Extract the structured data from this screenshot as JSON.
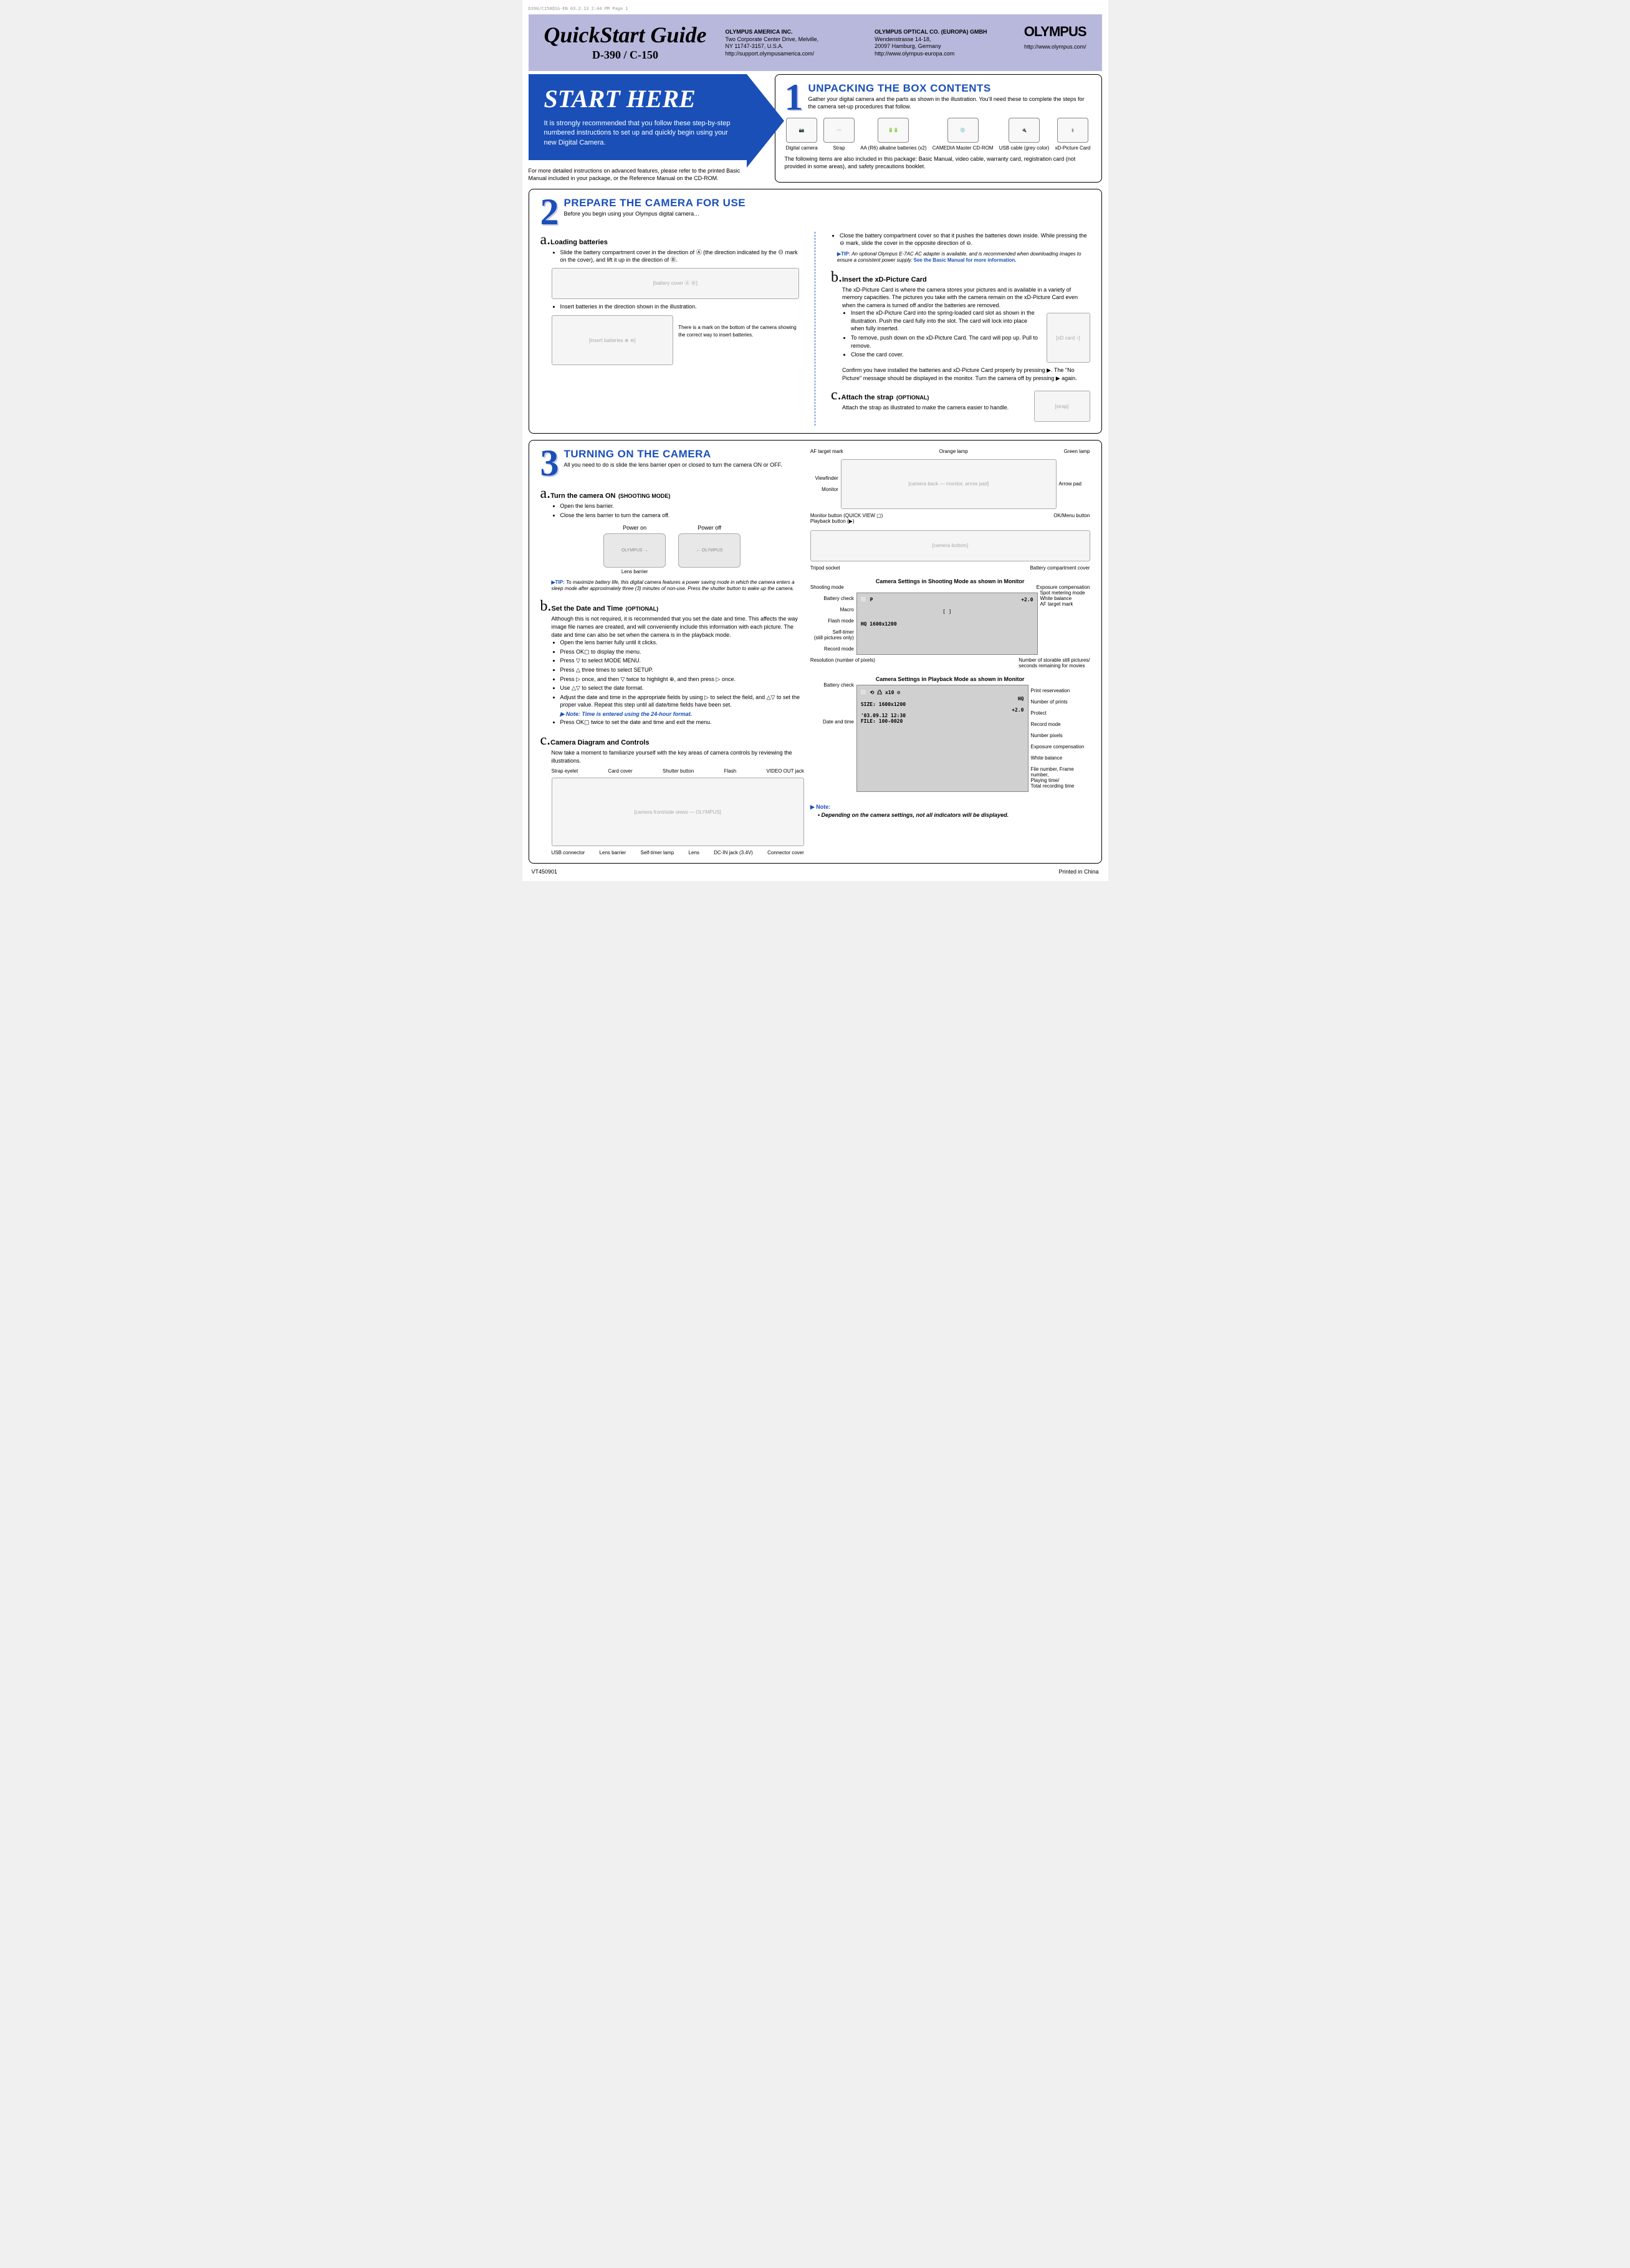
{
  "print_mark": "D390/C150QSG-EN  03.2.13 2:44 PM  Page 1",
  "header": {
    "title": "QuickStart Guide",
    "model": "D-390 / C-150",
    "addr1_name": "OLYMPUS AMERICA INC.",
    "addr1_lines": "Two Corporate Center Drive, Melville,\nNY 11747-3157, U.S.A.\nhttp://support.olympusamerica.com/",
    "addr2_name": "OLYMPUS OPTICAL CO. (EUROPA) GMBH",
    "addr2_lines": "Wendenstrasse 14-18,\n20097 Hamburg, Germany\nhttp://www.olympus-europa.com",
    "brand": "OLYMPUS",
    "brand_url": "http://www.olympus.com/"
  },
  "start": {
    "title": "START HERE",
    "text": "It is strongly recommended that you follow these step-by-step numbered instructions to set up and quickly begin using your new Digital Camera.",
    "note": "For more detailed instructions on advanced features, please refer to the printed Basic Manual included in your package, or the Reference Manual on the CD-ROM."
  },
  "sec1": {
    "num": "1",
    "title": "UNPACKING THE BOX CONTENTS",
    "intro": "Gather your digital camera and the parts as shown in the illustration. You'll need these to complete the steps for the camera set-up procedures that follow.",
    "items": [
      "Digital camera",
      "Strap",
      "AA (R6) alkaline batteries (x2)",
      "CAMEDIA Master CD-ROM",
      "USB cable (grey color)",
      "xD-Picture Card"
    ],
    "foot": "The following items are also included in this package: Basic Manual, video cable, warranty card, registration card (not provided in some areas), and safety precautions booklet."
  },
  "sec2": {
    "num": "2",
    "title": "PREPARE THE CAMERA FOR USE",
    "intro": "Before you begin using your Olympus digital camera…",
    "a_head": "Loading batteries",
    "a_li1": "Slide the battery compartment cover in the direction of Ⓐ (the direction indicated by the ⊖ mark on the cover), and lift it up in the direction of Ⓑ.",
    "a_li2": "Insert batteries in the direction shown in the illustration.",
    "a_caption": "There is a mark on the bottom of the camera showing the correct way to insert batteries.",
    "close_li": "Close the battery compartment cover so that it pushes the batteries down inside. While pressing the ⊖ mark, slide the cover in the opposite direction of ⊖.",
    "tip": "An optional Olympus E-7AC AC adapter is available, and is recommended when downloading images to ensure a consistent power supply.",
    "tip_bold": "See the Basic Manual for more information.",
    "b_head": "Insert the xD-Picture Card",
    "b_intro": "The xD-Picture Card is where the camera stores your pictures and is available in a variety of memory capacities. The pictures you take with the camera remain on the xD-Picture Card even when the camera is turned off and/or the batteries are removed.",
    "b_li1": "Insert the xD-Picture Card into the spring-loaded card slot as shown in the illustration. Push the card fully into the slot. The card will lock into place when fully inserted.",
    "b_li2": "To remove, push down on the xD-Picture Card. The card will pop up. Pull to remove.",
    "b_li3": "Close the card cover.",
    "b_confirm": "Confirm you have installed the batteries and xD-Picture Card properly by pressing ▶. The \"No Picture\" message should be displayed in the monitor. Turn the camera off by pressing ▶ again.",
    "c_head": "Attach the strap",
    "c_opt": "(OPTIONAL)",
    "c_text": "Attach the strap as illustrated to make the camera easier to handle."
  },
  "sec3": {
    "num": "3",
    "title": "TURNING ON THE CAMERA",
    "intro": "All you need to do is slide the lens barrier open or closed to turn the camera ON or OFF.",
    "a_head": "Turn the camera ON",
    "a_opt": "(SHOOTING MODE)",
    "a_li1": "Open the lens barrier.",
    "a_li2": "Close the lens barrier to turn the camera off.",
    "power_on": "Power on",
    "power_off": "Power off",
    "lens_barrier": "Lens barrier",
    "tip_a": "To maximize battery life, this digital camera features a power saving mode in which the camera enters a sleep mode after approximately three (3) minutes of non-use.  Press the shutter button to wake up the camera.",
    "b_head": "Set the Date and Time",
    "b_opt": "(OPTIONAL)",
    "b_intro": "Although this is not required, it is recommended that you set the date and time. This affects the way image file names are created, and will conveniently include this information with each picture. The date and time can also be set when the camera is in the playback mode.",
    "b_steps": [
      "Open the lens barrier fully until it clicks.",
      "Press OK▢ to display the menu.",
      "Press ▽ to select MODE MENU.",
      "Press △ three times to select SETUP.",
      "Press ▷ once, and then ▽ twice to highlight ⊕, and then press ▷ once.",
      "Use △▽ to select the date format.",
      "Adjust the date and time in the appropriate fields by using ▷ to select the field, and △▽ to set the proper value. Repeat this step until all date/time fields have been set."
    ],
    "b_note": "Note: Time is entered using the 24-hour format.",
    "b_last": "Press OK▢ twice to set the date and time and exit the menu.",
    "c_head": "Camera Diagram and Controls",
    "c_intro": "Now take a moment to familiarize yourself with the key areas of camera controls by reviewing the illustrations.",
    "front_labels": [
      "Strap eyelet",
      "Card cover",
      "Shutter button",
      "Flash",
      "VIDEO OUT jack"
    ],
    "bottom_labels": [
      "USB connector",
      "Lens barrier",
      "Self-timer lamp",
      "Lens",
      "DC-IN jack (3.4V)",
      "Connector cover"
    ],
    "back_labels": {
      "af": "AF target mark",
      "orange": "Orange lamp",
      "green": "Green lamp",
      "vf": "Viewfinder",
      "arrow": "Arrow pad",
      "mon": "Monitor",
      "mbtn": "Monitor button (QUICK VIEW ▢)\nPlayback button (▶)",
      "ok": "OK/Menu button",
      "tripod": "Tripod socket",
      "batt": "Battery compartment cover"
    },
    "shoot_title": "Camera Settings in Shooting Mode as shown in Monitor",
    "shoot_labels_l": [
      "Battery check",
      "Macro",
      "Flash mode",
      "Self-timer\n(still pictures only)",
      "Record mode"
    ],
    "shoot_labels_t": [
      "Shooting mode",
      "Exposure compensation"
    ],
    "shoot_labels_r": [
      "Spot metering mode",
      "White balance",
      "AF target mark"
    ],
    "shoot_labels_b": [
      "Resolution (number of pixels)",
      "Number of storable still pictures/\nseconds remaining for movies"
    ],
    "shoot_screen": [
      "⬜ P",
      "+2.0",
      "HQ  1600x1200"
    ],
    "play_title": "Camera Settings in Playback Mode as shown in Monitor",
    "play_labels_l": [
      "Battery check",
      "Date and time"
    ],
    "play_labels_r": [
      "Print reserveation",
      "Number of prints",
      "Protect",
      "Record mode",
      "Number pixels",
      "Exposure compensation",
      "White balance",
      "File number, Frame number,\nPlaying time/\nTotal recording time"
    ],
    "play_screen": [
      "⬜  ⟲ 凸 x10  ⊘",
      "HQ",
      "SIZE: 1600x1200",
      "+2.0",
      "'03.09.12 12:30",
      "FILE: 100-0020"
    ],
    "note_label": "Note:",
    "note_text": "Depending on the camera settings, not all indicators will be displayed."
  },
  "footer": {
    "left": "VT450901",
    "right": "Printed in China"
  }
}
